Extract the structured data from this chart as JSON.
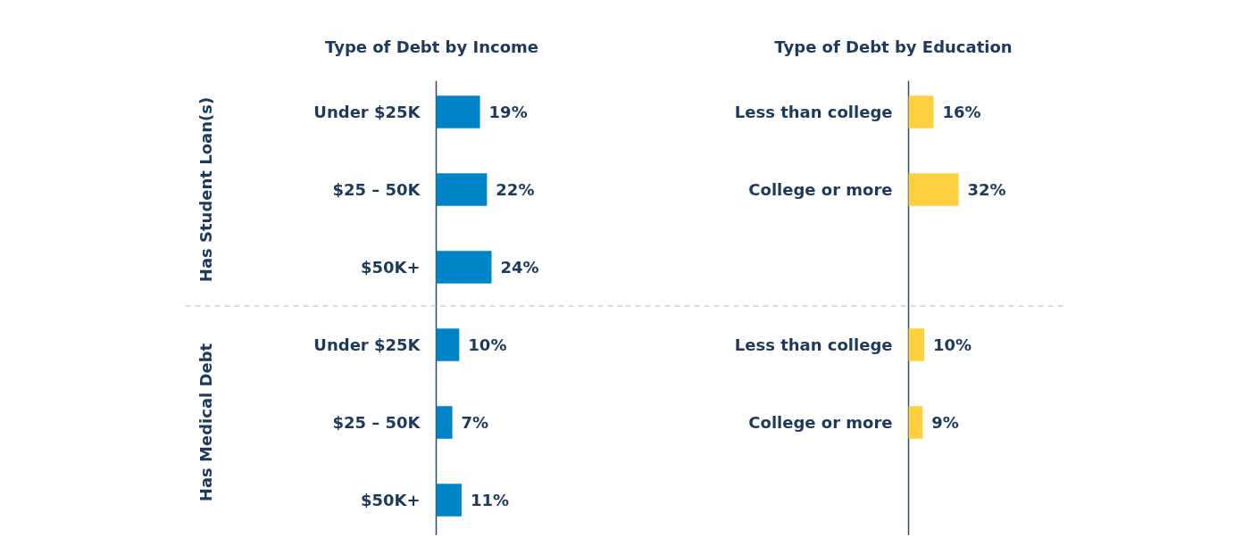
{
  "chart_data": [
    {
      "type": "bar",
      "orientation": "horizontal",
      "title": "Type of Debt by Income",
      "categories": [
        "Under $25K",
        "$25 – 50K",
        "$50K+",
        "Under $25K",
        "$25 – 50K",
        "$50K+"
      ],
      "values": [
        19,
        22,
        24,
        10,
        7,
        11
      ],
      "value_labels": [
        "19%",
        "22%",
        "24%",
        "10%",
        "7%",
        "11%"
      ],
      "color": "#0084c8",
      "annotations": [
        "Has Student Loan(s)",
        "Has Medical Debt"
      ]
    },
    {
      "type": "bar",
      "orientation": "horizontal",
      "title": "Type of Debt by Education",
      "categories": [
        "Less than college",
        "College or more",
        null,
        "Less than college",
        "College or more",
        null
      ],
      "values": [
        16,
        32,
        null,
        10,
        9,
        null
      ],
      "value_labels": [
        "16%",
        "32%",
        null,
        "10%",
        "9%",
        null
      ],
      "color": "#fecf3e"
    }
  ]
}
